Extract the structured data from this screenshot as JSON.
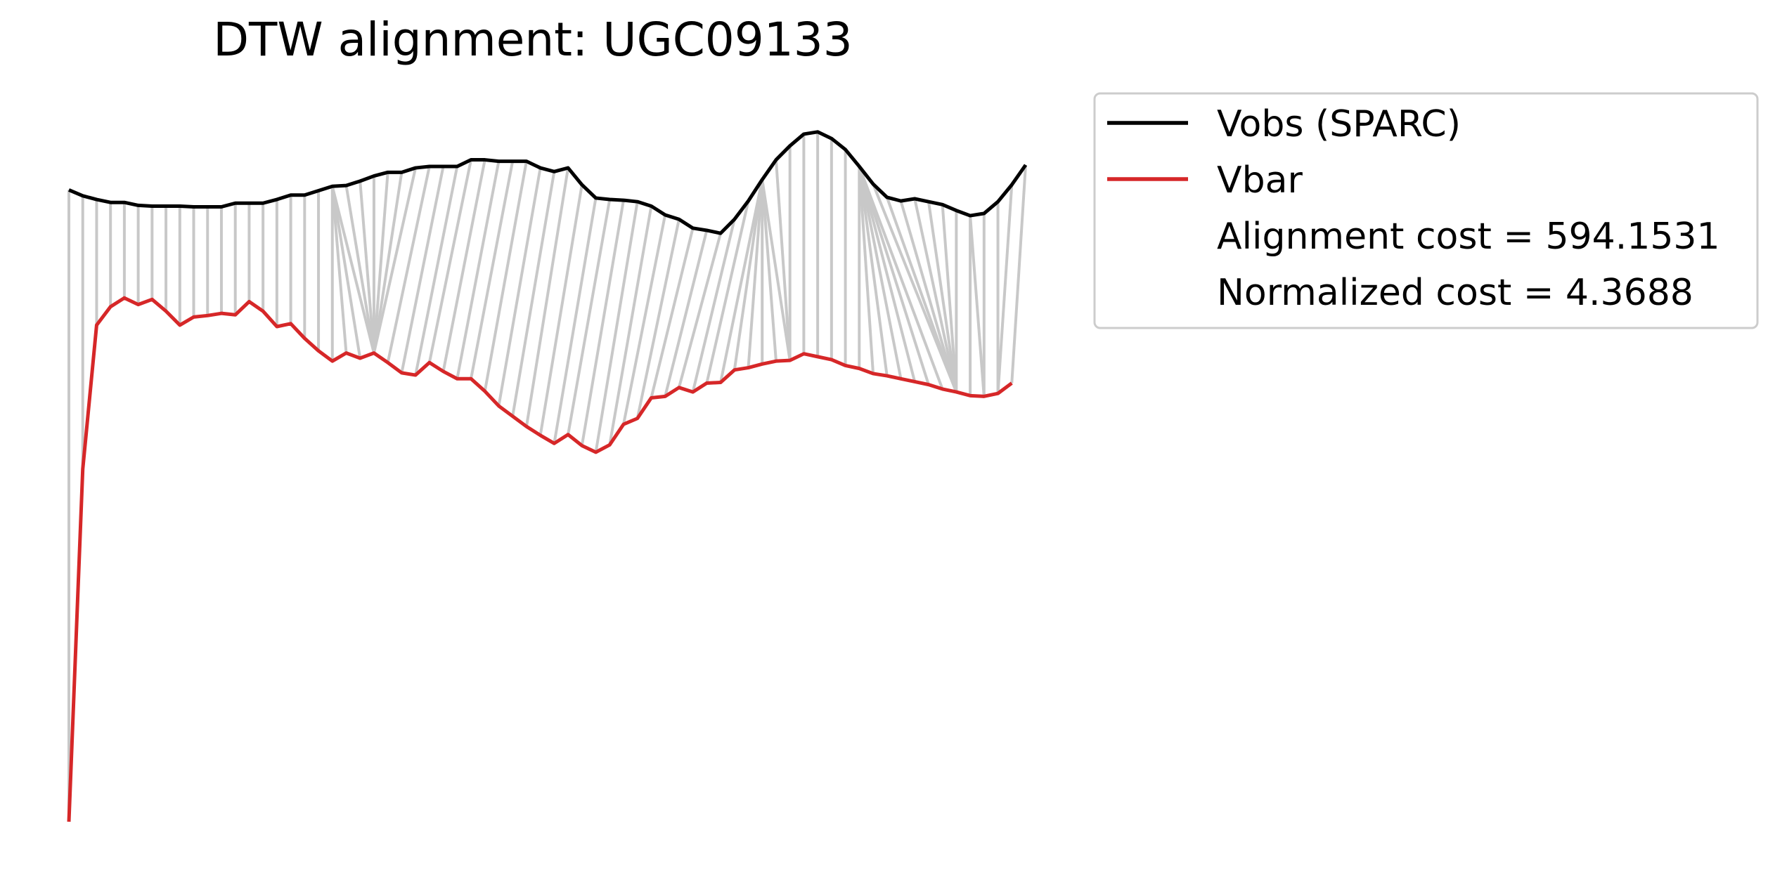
{
  "chart_data": {
    "type": "line",
    "title": "DTW alignment: UGC09133",
    "xlabel": "",
    "ylabel": "",
    "axes_visible": false,
    "grid": false,
    "legend_placement": "outside-top-right",
    "colors": {
      "observed": "#000000",
      "baryonic": "#d62728",
      "alignment": "#c8c8c8"
    },
    "series": [
      {
        "name": "Vobs (SPARC)",
        "values": [
          0.86,
          0.852,
          0.847,
          0.843,
          0.843,
          0.839,
          0.838,
          0.838,
          0.838,
          0.837,
          0.837,
          0.837,
          0.842,
          0.842,
          0.842,
          0.847,
          0.853,
          0.853,
          0.859,
          0.865,
          0.866,
          0.872,
          0.879,
          0.884,
          0.884,
          0.89,
          0.892,
          0.892,
          0.892,
          0.901,
          0.901,
          0.899,
          0.899,
          0.899,
          0.89,
          0.885,
          0.89,
          0.867,
          0.849,
          0.847,
          0.846,
          0.844,
          0.838,
          0.826,
          0.82,
          0.808,
          0.805,
          0.801,
          0.82,
          0.845,
          0.874,
          0.901,
          0.92,
          0.936,
          0.939,
          0.93,
          0.915,
          0.892,
          0.868,
          0.85,
          0.845,
          0.848,
          0.844,
          0.84,
          0.832,
          0.825,
          0.828,
          0.844,
          0.867,
          0.894
        ]
      },
      {
        "name": "Vbar",
        "values": [
          0.0,
          0.48,
          0.676,
          0.701,
          0.713,
          0.704,
          0.711,
          0.695,
          0.676,
          0.687,
          0.689,
          0.692,
          0.69,
          0.708,
          0.695,
          0.674,
          0.678,
          0.658,
          0.641,
          0.627,
          0.638,
          0.631,
          0.638,
          0.625,
          0.611,
          0.608,
          0.625,
          0.613,
          0.603,
          0.603,
          0.586,
          0.566,
          0.552,
          0.538,
          0.526,
          0.515,
          0.527,
          0.512,
          0.503,
          0.513,
          0.541,
          0.549,
          0.577,
          0.579,
          0.591,
          0.585,
          0.597,
          0.598,
          0.615,
          0.618,
          0.623,
          0.627,
          0.628,
          0.637,
          0.633,
          0.629,
          0.621,
          0.617,
          0.61,
          0.607,
          0.603,
          0.599,
          0.595,
          0.589,
          0.585,
          0.58,
          0.579,
          0.583,
          0.597
        ]
      }
    ],
    "alignment_pairs": [
      [
        0,
        0
      ],
      [
        1,
        1
      ],
      [
        2,
        2
      ],
      [
        3,
        3
      ],
      [
        4,
        4
      ],
      [
        5,
        5
      ],
      [
        6,
        6
      ],
      [
        7,
        7
      ],
      [
        8,
        8
      ],
      [
        9,
        9
      ],
      [
        10,
        10
      ],
      [
        11,
        11
      ],
      [
        12,
        12
      ],
      [
        13,
        13
      ],
      [
        14,
        14
      ],
      [
        15,
        15
      ],
      [
        16,
        16
      ],
      [
        17,
        17
      ],
      [
        18,
        18
      ],
      [
        19,
        19
      ],
      [
        19,
        20
      ],
      [
        19,
        21
      ],
      [
        19,
        22
      ],
      [
        20,
        22
      ],
      [
        21,
        22
      ],
      [
        22,
        22
      ],
      [
        23,
        22
      ],
      [
        24,
        22
      ],
      [
        25,
        22
      ],
      [
        26,
        23
      ],
      [
        27,
        24
      ],
      [
        28,
        25
      ],
      [
        29,
        26
      ],
      [
        30,
        27
      ],
      [
        31,
        28
      ],
      [
        32,
        29
      ],
      [
        33,
        30
      ],
      [
        34,
        31
      ],
      [
        35,
        32
      ],
      [
        36,
        33
      ],
      [
        37,
        34
      ],
      [
        38,
        35
      ],
      [
        39,
        36
      ],
      [
        40,
        37
      ],
      [
        41,
        38
      ],
      [
        42,
        39
      ],
      [
        43,
        40
      ],
      [
        44,
        41
      ],
      [
        45,
        42
      ],
      [
        46,
        43
      ],
      [
        47,
        44
      ],
      [
        48,
        45
      ],
      [
        49,
        46
      ],
      [
        50,
        47
      ],
      [
        50,
        48
      ],
      [
        50,
        49
      ],
      [
        50,
        50
      ],
      [
        50,
        51
      ],
      [
        50,
        52
      ],
      [
        51,
        52
      ],
      [
        52,
        52
      ],
      [
        53,
        53
      ],
      [
        54,
        54
      ],
      [
        55,
        55
      ],
      [
        56,
        56
      ],
      [
        57,
        57
      ],
      [
        57,
        58
      ],
      [
        57,
        59
      ],
      [
        57,
        60
      ],
      [
        57,
        61
      ],
      [
        57,
        62
      ],
      [
        57,
        63
      ],
      [
        58,
        64
      ],
      [
        59,
        64
      ],
      [
        60,
        64
      ],
      [
        61,
        64
      ],
      [
        62,
        64
      ],
      [
        63,
        64
      ],
      [
        64,
        64
      ],
      [
        65,
        65
      ],
      [
        65,
        66
      ],
      [
        66,
        66
      ],
      [
        67,
        67
      ],
      [
        68,
        67
      ],
      [
        69,
        68
      ]
    ],
    "annotations": {
      "alignment_cost": "Alignment cost = 594.1531",
      "normalized_cost": "Normalized cost = 4.3688"
    }
  }
}
